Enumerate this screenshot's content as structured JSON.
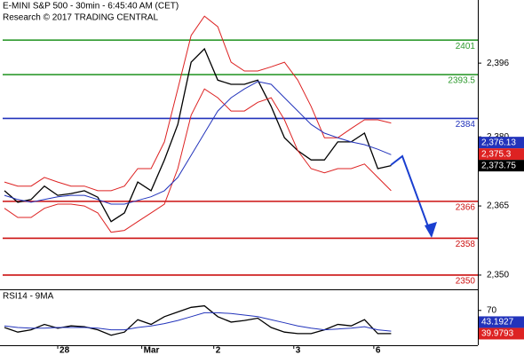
{
  "chart_data": [
    {
      "type": "line",
      "title": "E-MINI S&P 500 - 30min - 6:45:40 AM (CET)",
      "subtitle": "Research © 2017 TRADING CENTRAL",
      "xlim": [
        -0.33,
        35.5
      ],
      "ylim": [
        2347.1,
        2409.7
      ],
      "yticks": [
        {
          "value": 2396,
          "label": "2,396"
        },
        {
          "value": 2380,
          "label": "2,380"
        },
        {
          "value": 2365,
          "label": "2,365"
        },
        {
          "value": 2350,
          "label": "2,350"
        }
      ],
      "levels": [
        {
          "value": 2401,
          "color": "#2e9a2e"
        },
        {
          "value": 2393.5,
          "color": "#2e9a2e"
        },
        {
          "value": 2384,
          "color": "#2233bb"
        },
        {
          "value": 2366,
          "color": "#cc1111"
        },
        {
          "value": 2358,
          "color": "#cc1111"
        },
        {
          "value": 2350,
          "color": "#cc1111"
        }
      ],
      "series": [
        {
          "color": "#000000",
          "values": [
            2368.3,
            2365.8,
            2366.4,
            2369.3,
            2367.3,
            2367.7,
            2368.3,
            2366.9,
            2361.6,
            2363.5,
            2370.2,
            2368.3,
            2375.0,
            2382.7,
            2396.2,
            2399.1,
            2392.3,
            2391.4,
            2391.4,
            2392.3,
            2386.6,
            2379.8,
            2377.0,
            2375.0,
            2375.0,
            2378.9,
            2378.9,
            2380.8,
            2373.1,
            2373.75
          ]
        },
        {
          "color": "#dd2222",
          "values": [
            2370.2,
            2369.3,
            2369.3,
            2371.2,
            2370.2,
            2369.3,
            2369.3,
            2368.3,
            2368.3,
            2369.3,
            2373.1,
            2373.1,
            2378.9,
            2390.4,
            2402.0,
            2406.2,
            2403.9,
            2396.2,
            2394.3,
            2394.3,
            2395.2,
            2396.2,
            2392.3,
            2386.6,
            2379.8,
            2379.8,
            2381.8,
            2383.7,
            2383.7,
            2383.0
          ]
        },
        {
          "color": "#dd2222",
          "values": [
            2364.5,
            2362.5,
            2362.5,
            2364.5,
            2365.4,
            2365.4,
            2365.0,
            2363.5,
            2359.3,
            2359.7,
            2361.6,
            2363.5,
            2365.4,
            2373.1,
            2384.7,
            2390.4,
            2388.5,
            2385.6,
            2385.6,
            2387.5,
            2388.5,
            2383.7,
            2377.0,
            2373.1,
            2372.2,
            2373.1,
            2373.1,
            2374.1,
            2371.2,
            2368.3
          ]
        },
        {
          "color": "#2233bb",
          "values": [
            2367.3,
            2366.4,
            2365.8,
            2366.4,
            2367.0,
            2367.3,
            2367.3,
            2366.4,
            2365.4,
            2365.4,
            2366.2,
            2367.0,
            2368.3,
            2371.2,
            2376.0,
            2380.8,
            2385.6,
            2388.5,
            2390.4,
            2392.0,
            2391.4,
            2388.5,
            2385.6,
            2382.7,
            2380.8,
            2379.8,
            2378.9,
            2378.3,
            2377.3,
            2376.13
          ]
        }
      ],
      "markers": [
        {
          "value": 2376.13,
          "label": "2,376.13",
          "color": "#2233bb"
        },
        {
          "value": 2375.3,
          "label": "2,375.3",
          "color": "#dd2222"
        },
        {
          "value": 2373.75,
          "label": "2,373.75",
          "color": "#000000"
        }
      ]
    },
    {
      "type": "line",
      "title": "RSI14 - 9MA",
      "xlim": [
        -0.33,
        35.5
      ],
      "ylim": [
        25,
        95
      ],
      "yticks": [
        70
      ],
      "xticks": [
        {
          "value": 4,
          "label": "28"
        },
        {
          "value": 10.3,
          "label": "Mar"
        },
        {
          "value": 15.7,
          "label": "2"
        },
        {
          "value": 21.7,
          "label": "3"
        },
        {
          "value": 27.7,
          "label": "6"
        }
      ],
      "series": [
        {
          "color": "#000000",
          "values": [
            48,
            42,
            45,
            52,
            47,
            50,
            49,
            45,
            38,
            42,
            58,
            52,
            62,
            68,
            74,
            76,
            62,
            55,
            57,
            60,
            48,
            42,
            40,
            40,
            45,
            52,
            50,
            58,
            40,
            39.9793
          ]
        },
        {
          "color": "#2233bb",
          "values": [
            50,
            48,
            47,
            47,
            48,
            48,
            48,
            47,
            45,
            45,
            48,
            50,
            53,
            57,
            62,
            67,
            67,
            66,
            64,
            62,
            58,
            54,
            50,
            47,
            45,
            46,
            47,
            49,
            45,
            43.1927
          ]
        }
      ],
      "markers": [
        {
          "value": 43.1927,
          "label": "43.1927",
          "color": "#2233bb"
        },
        {
          "value": 39.9793,
          "label": "39.9793",
          "color": "#dd2222"
        }
      ]
    }
  ]
}
